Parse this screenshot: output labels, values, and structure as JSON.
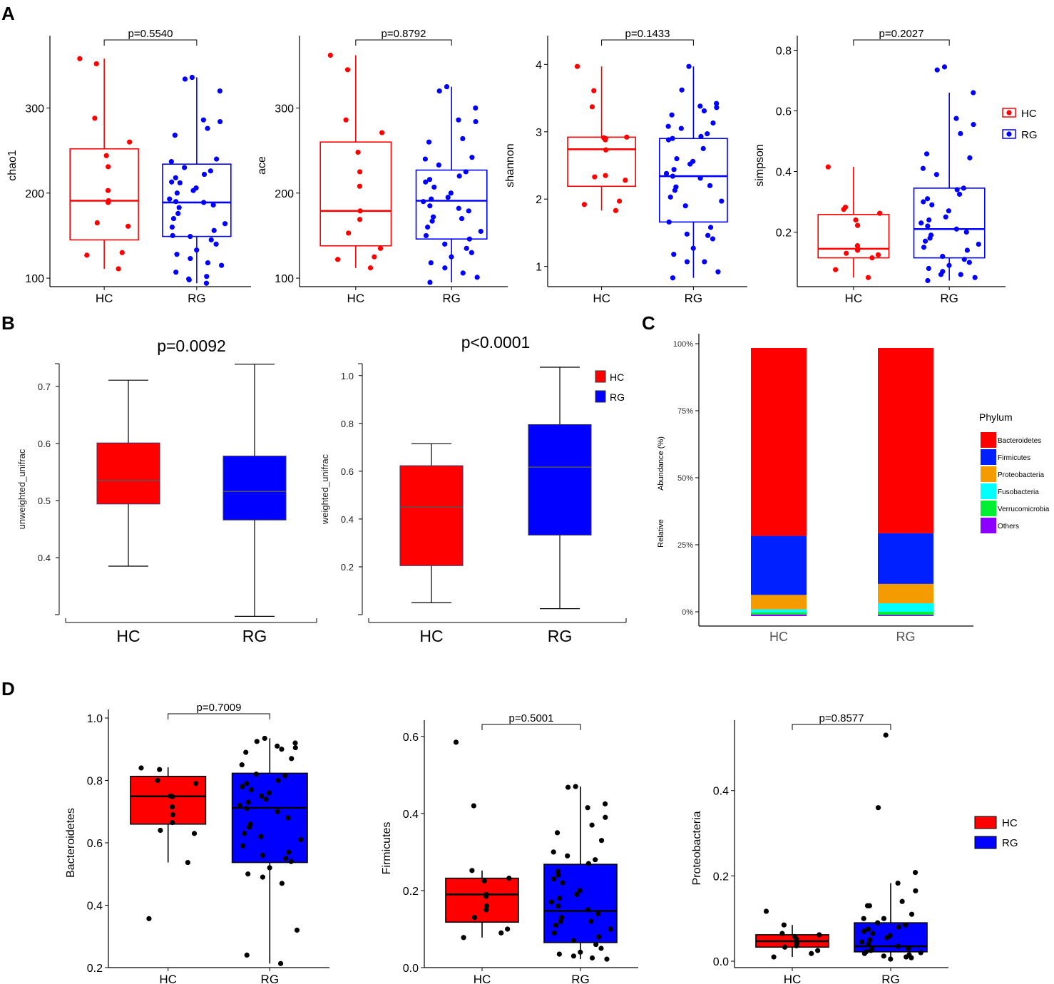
{
  "panel_letters": [
    "A",
    "B",
    "C",
    "D"
  ],
  "colors": {
    "HC": "#ff0000",
    "RG": "#0000ff",
    "axis": "#000000",
    "box_dark": "#000000"
  },
  "chart_data": [
    {
      "id": "A1",
      "panel": "A",
      "type": "box",
      "ylabel": "chao1",
      "categories": [
        "HC",
        "RG"
      ],
      "ylim": [
        90,
        375
      ],
      "yticks": [
        100,
        200,
        300
      ],
      "pvalue": "p=0.5540",
      "boxes": [
        {
          "group": "HC",
          "q1": 145,
          "median": 191,
          "q3": 252,
          "whisker_low": 111,
          "whisker_high": 358,
          "points": [
            358,
            352,
            288,
            260,
            244,
            231,
            203,
            191,
            189,
            165,
            161,
            130,
            127,
            111
          ]
        },
        {
          "group": "RG",
          "q1": 149,
          "median": 189,
          "q3": 234,
          "whisker_low": 94,
          "whisker_high": 336,
          "points": [
            336,
            334,
            320,
            286,
            284,
            276,
            268,
            240,
            237,
            230,
            226,
            222,
            218,
            213,
            212,
            206,
            203,
            200,
            193,
            190,
            189,
            186,
            183,
            176,
            170,
            164,
            160,
            156,
            149,
            145,
            140,
            133,
            128,
            123,
            118,
            115,
            107,
            102,
            99,
            98,
            94,
            150
          ]
        }
      ]
    },
    {
      "id": "A2",
      "panel": "A",
      "type": "box",
      "ylabel": "ace",
      "categories": [
        "HC",
        "RG"
      ],
      "ylim": [
        90,
        375
      ],
      "yticks": [
        100,
        200,
        300
      ],
      "pvalue": "p=0.8792",
      "boxes": [
        {
          "group": "HC",
          "q1": 138,
          "median": 179,
          "q3": 260,
          "whisker_low": 112,
          "whisker_high": 362,
          "points": [
            362,
            345,
            286,
            271,
            248,
            225,
            208,
            179,
            169,
            153,
            135,
            125,
            122,
            112
          ]
        },
        {
          "group": "RG",
          "q1": 146,
          "median": 191,
          "q3": 227,
          "whisker_low": 95,
          "whisker_high": 325,
          "points": [
            325,
            320,
            300,
            286,
            284,
            264,
            260,
            242,
            240,
            233,
            225,
            220,
            216,
            213,
            207,
            200,
            195,
            193,
            190,
            185,
            182,
            179,
            172,
            167,
            160,
            155,
            150,
            146,
            140,
            135,
            130,
            125,
            118,
            112,
            106,
            101,
            95,
            170
          ]
        }
      ]
    },
    {
      "id": "A3",
      "panel": "A",
      "type": "box",
      "ylabel": "shannon",
      "categories": [
        "HC",
        "RG"
      ],
      "ylim": [
        0.7,
        4.3
      ],
      "yticks": [
        1,
        2,
        3,
        4
      ],
      "pvalue": "p=0.1433",
      "boxes": [
        {
          "group": "HC",
          "q1": 2.19,
          "median": 2.74,
          "q3": 2.92,
          "whisker_low": 1.83,
          "whisker_high": 3.97,
          "points": [
            3.97,
            3.61,
            3.37,
            2.92,
            2.91,
            2.9,
            2.88,
            2.73,
            2.35,
            2.33,
            2.28,
            1.97,
            1.92,
            1.83
          ]
        },
        {
          "group": "RG",
          "q1": 1.66,
          "median": 2.34,
          "q3": 2.9,
          "whisker_low": 0.83,
          "whisker_high": 3.97,
          "points": [
            3.97,
            3.62,
            3.42,
            3.38,
            3.36,
            3.31,
            3.25,
            3.13,
            3.08,
            3.05,
            2.97,
            2.93,
            2.9,
            2.88,
            2.6,
            2.56,
            2.52,
            2.44,
            2.38,
            2.34,
            2.31,
            2.2,
            2.18,
            2.13,
            2.03,
            1.97,
            1.66,
            1.58,
            1.48,
            1.46,
            1.41,
            1.27,
            1.18,
            1.07,
            1.07,
            0.92,
            0.83,
            2.75,
            1.9
          ]
        }
      ]
    },
    {
      "id": "A4",
      "panel": "A",
      "type": "box",
      "ylabel": "simpson",
      "categories": [
        "HC",
        "RG"
      ],
      "ylim": [
        0.02,
        0.82
      ],
      "yticks": [
        0.2,
        0.4,
        0.6,
        0.8
      ],
      "pvalue": "p=0.2027",
      "boxes": [
        {
          "group": "HC",
          "q1": 0.115,
          "median": 0.145,
          "q3": 0.258,
          "whisker_low": 0.05,
          "whisker_high": 0.415,
          "points": [
            0.415,
            0.282,
            0.275,
            0.262,
            0.24,
            0.222,
            0.155,
            0.145,
            0.14,
            0.13,
            0.125,
            0.115,
            0.076,
            0.05
          ]
        },
        {
          "group": "RG",
          "q1": 0.115,
          "median": 0.21,
          "q3": 0.345,
          "whisker_low": 0.04,
          "whisker_high": 0.66,
          "points": [
            0.745,
            0.735,
            0.66,
            0.575,
            0.555,
            0.525,
            0.458,
            0.445,
            0.41,
            0.39,
            0.345,
            0.34,
            0.31,
            0.3,
            0.29,
            0.27,
            0.25,
            0.24,
            0.23,
            0.22,
            0.21,
            0.2,
            0.19,
            0.18,
            0.17,
            0.16,
            0.15,
            0.14,
            0.12,
            0.11,
            0.1,
            0.09,
            0.08,
            0.07,
            0.06,
            0.05,
            0.04,
            0.325,
            0.06
          ]
        }
      ]
    },
    {
      "id": "B1",
      "panel": "B",
      "type": "box",
      "ylabel": "unweighted_unifrac",
      "categories": [
        "HC",
        "RG"
      ],
      "ylim": [
        0.3,
        0.74
      ],
      "yticks": [
        0.4,
        0.5,
        0.6,
        0.7
      ],
      "pvalue": "p=0.0092",
      "boxes": [
        {
          "group": "HC",
          "q1": 0.494,
          "median": 0.535,
          "q3": 0.601,
          "whisker_low": 0.385,
          "whisker_high": 0.711
        },
        {
          "group": "RG",
          "q1": 0.466,
          "median": 0.516,
          "q3": 0.578,
          "whisker_low": 0.297,
          "whisker_high": 0.739
        }
      ]
    },
    {
      "id": "B2",
      "panel": "B",
      "type": "box",
      "ylabel": "weighted_unifrac",
      "categories": [
        "HC",
        "RG"
      ],
      "ylim": [
        0.0,
        1.05
      ],
      "yticks": [
        0.2,
        0.4,
        0.6,
        0.8,
        1.0
      ],
      "pvalue": "p<0.0001",
      "legend": [
        "HC",
        "RG"
      ],
      "boxes": [
        {
          "group": "HC",
          "q1": 0.205,
          "median": 0.45,
          "q3": 0.623,
          "whisker_low": 0.05,
          "whisker_high": 0.715
        },
        {
          "group": "RG",
          "q1": 0.333,
          "median": 0.617,
          "q3": 0.795,
          "whisker_low": 0.025,
          "whisker_high": 1.035
        }
      ]
    },
    {
      "id": "C",
      "panel": "C",
      "type": "bar",
      "stacked": true,
      "categories": [
        "HC",
        "RG"
      ],
      "ylabel": "Relative Abundance (%)",
      "ylabel_parts": [
        "Relative",
        "Abundance (%)"
      ],
      "yticks": [
        "0%",
        "25%",
        "50%",
        "75%",
        "100%"
      ],
      "legend_title": "Phylum",
      "series": [
        {
          "name": "Others",
          "color": "#8b00ff",
          "values": [
            0.6,
            0.4
          ]
        },
        {
          "name": "Verrucomicrobia",
          "color": "#00ee33",
          "values": [
            0.8,
            1.2
          ]
        },
        {
          "name": "Fusobacteria",
          "color": "#00ffff",
          "values": [
            1.1,
            3.2
          ]
        },
        {
          "name": "Proteobacteria",
          "color": "#f49b00",
          "values": [
            5.4,
            7.2
          ]
        },
        {
          "name": "Firmicutes",
          "color": "#0020ff",
          "values": [
            22.0,
            18.9
          ]
        },
        {
          "name": "Bacteroidetes",
          "color": "#ff0000",
          "values": [
            70.1,
            69.1
          ]
        }
      ],
      "legend_order": [
        "Bacteroidetes",
        "Firmicutes",
        "Proteobacteria",
        "Fusobacteria",
        "Verrucomicrobia",
        "Others"
      ]
    },
    {
      "id": "D1",
      "panel": "D",
      "type": "box",
      "ylabel": "Bacteroidetes",
      "categories": [
        "HC",
        "RG"
      ],
      "ylim": [
        0.2,
        1.0
      ],
      "yticks": [
        0.2,
        0.4,
        0.6,
        0.8,
        1.0
      ],
      "pvalue": "p=0.7009",
      "boxes": [
        {
          "group": "HC",
          "q1": 0.66,
          "median": 0.749,
          "q3": 0.813,
          "whisker_low": 0.537,
          "whisker_high": 0.842,
          "points": [
            0.84,
            0.835,
            0.8,
            0.79,
            0.75,
            0.748,
            0.715,
            0.69,
            0.665,
            0.64,
            0.63,
            0.537,
            0.357
          ]
        },
        {
          "group": "RG",
          "q1": 0.537,
          "median": 0.712,
          "q3": 0.823,
          "whisker_low": 0.213,
          "whisker_high": 0.935,
          "points": [
            0.935,
            0.925,
            0.92,
            0.91,
            0.905,
            0.9,
            0.89,
            0.87,
            0.85,
            0.82,
            0.815,
            0.8,
            0.79,
            0.78,
            0.77,
            0.76,
            0.74,
            0.73,
            0.72,
            0.71,
            0.7,
            0.68,
            0.66,
            0.65,
            0.63,
            0.61,
            0.59,
            0.57,
            0.56,
            0.55,
            0.54,
            0.52,
            0.5,
            0.49,
            0.47,
            0.32,
            0.24,
            0.213,
            0.62,
            0.75
          ]
        }
      ]
    },
    {
      "id": "D2",
      "panel": "D",
      "type": "box",
      "ylabel": "Firmicutes",
      "categories": [
        "HC",
        "RG"
      ],
      "ylim": [
        0.0,
        0.62
      ],
      "yticks": [
        0.0,
        0.2,
        0.4,
        0.6
      ],
      "pvalue": "p=0.5001",
      "boxes": [
        {
          "group": "HC",
          "q1": 0.118,
          "median": 0.19,
          "q3": 0.232,
          "whisker_low": 0.078,
          "whisker_high": 0.252,
          "points": [
            0.585,
            0.42,
            0.252,
            0.232,
            0.225,
            0.19,
            0.185,
            0.16,
            0.15,
            0.13,
            0.1,
            0.09,
            0.078
          ]
        },
        {
          "group": "RG",
          "q1": 0.065,
          "median": 0.147,
          "q3": 0.268,
          "whisker_low": 0.022,
          "whisker_high": 0.47,
          "points": [
            0.47,
            0.468,
            0.425,
            0.415,
            0.39,
            0.37,
            0.35,
            0.33,
            0.3,
            0.29,
            0.28,
            0.27,
            0.25,
            0.23,
            0.22,
            0.2,
            0.19,
            0.18,
            0.17,
            0.16,
            0.15,
            0.14,
            0.13,
            0.12,
            0.11,
            0.1,
            0.09,
            0.08,
            0.07,
            0.06,
            0.05,
            0.04,
            0.035,
            0.03,
            0.025,
            0.022,
            0.24,
            0.12
          ]
        }
      ]
    },
    {
      "id": "D3",
      "panel": "D",
      "type": "box",
      "ylabel": "Proteobacteria",
      "categories": [
        "HC",
        "RG"
      ],
      "ylim": [
        -0.015,
        0.545
      ],
      "yticks": [
        0.0,
        0.2,
        0.4
      ],
      "pvalue": "p=0.8577",
      "legend": [
        "HC",
        "RG"
      ],
      "boxes": [
        {
          "group": "HC",
          "q1": 0.033,
          "median": 0.047,
          "q3": 0.062,
          "whisker_low": 0.01,
          "whisker_high": 0.085,
          "points": [
            0.117,
            0.085,
            0.065,
            0.062,
            0.058,
            0.052,
            0.047,
            0.042,
            0.036,
            0.033,
            0.025,
            0.018,
            0.01
          ]
        },
        {
          "group": "RG",
          "q1": 0.022,
          "median": 0.035,
          "q3": 0.09,
          "whisker_low": 0.005,
          "whisker_high": 0.183,
          "points": [
            0.53,
            0.36,
            0.208,
            0.183,
            0.165,
            0.14,
            0.13,
            0.11,
            0.1,
            0.09,
            0.085,
            0.08,
            0.075,
            0.07,
            0.065,
            0.06,
            0.055,
            0.05,
            0.045,
            0.04,
            0.035,
            0.03,
            0.028,
            0.025,
            0.022,
            0.02,
            0.018,
            0.015,
            0.012,
            0.01,
            0.008,
            0.005,
            0.13,
            0.1
          ]
        }
      ]
    }
  ]
}
